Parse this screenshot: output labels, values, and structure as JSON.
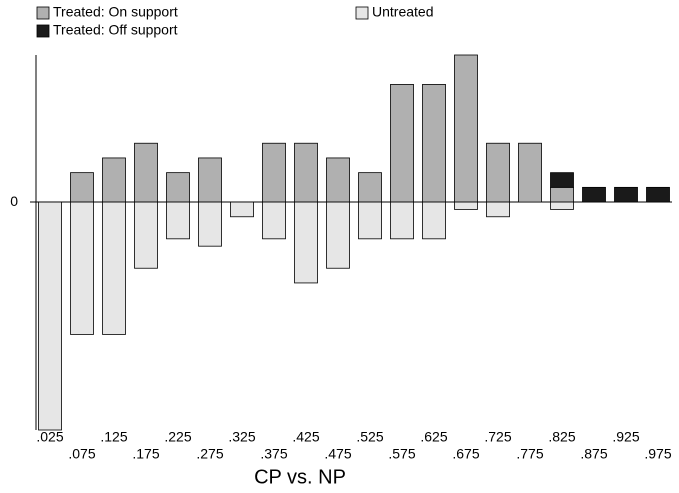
{
  "chart_data": {
    "type": "bar",
    "xlabel": "CP vs. NP",
    "categories": [
      ".025",
      ".075",
      ".125",
      ".175",
      ".225",
      ".275",
      ".325",
      ".375",
      ".425",
      ".475",
      ".525",
      ".575",
      ".625",
      ".675",
      ".725",
      ".775",
      ".825",
      ".875",
      ".925",
      ".975"
    ],
    "series": [
      {
        "name": "Treated: On support",
        "color": "#b0b0b0",
        "values": [
          null,
          4,
          6,
          8,
          4,
          6,
          null,
          8,
          8,
          6,
          4,
          16,
          16,
          20,
          8,
          8,
          2,
          null,
          null,
          null
        ]
      },
      {
        "name": "Treated: Off support",
        "color": "#1a1a1a",
        "values": [
          null,
          null,
          null,
          null,
          null,
          null,
          null,
          null,
          null,
          null,
          null,
          null,
          null,
          null,
          null,
          null,
          2,
          2,
          2,
          2
        ]
      },
      {
        "name": "Untreated",
        "color": "#e6e6e6",
        "values": [
          -31,
          -18,
          -18,
          -9,
          -5,
          -6,
          -2,
          -5,
          -11,
          -9,
          -5,
          -5,
          -5,
          -1,
          -2,
          null,
          -1,
          null,
          null,
          null
        ]
      }
    ],
    "ylim": [
      -31,
      20
    ],
    "yticks": [
      0
    ]
  }
}
